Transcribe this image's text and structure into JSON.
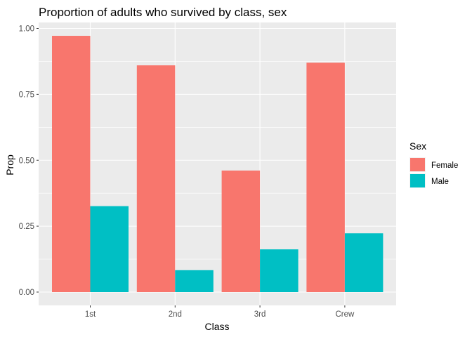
{
  "chart_data": {
    "type": "bar",
    "title": "Proportion of adults who survived by class, sex",
    "xlabel": "Class",
    "ylabel": "Prop",
    "categories": [
      "1st",
      "2nd",
      "3rd",
      "Crew"
    ],
    "series": [
      {
        "name": "Female",
        "color": "#F8766D",
        "values": [
          0.972,
          0.86,
          0.461,
          0.87
        ]
      },
      {
        "name": "Male",
        "color": "#00BFC4",
        "values": [
          0.326,
          0.083,
          0.162,
          0.223
        ]
      }
    ],
    "ylim": [
      0,
      1.05
    ],
    "yticks": [
      0,
      0.25,
      0.5,
      0.75,
      1
    ],
    "ytick_labels": [
      "0.00",
      "0.25",
      "0.50",
      "0.75",
      "1.00"
    ],
    "grid": true,
    "panel_background": "#EBEBEB",
    "legend": {
      "title": "Sex",
      "position": "right"
    }
  }
}
